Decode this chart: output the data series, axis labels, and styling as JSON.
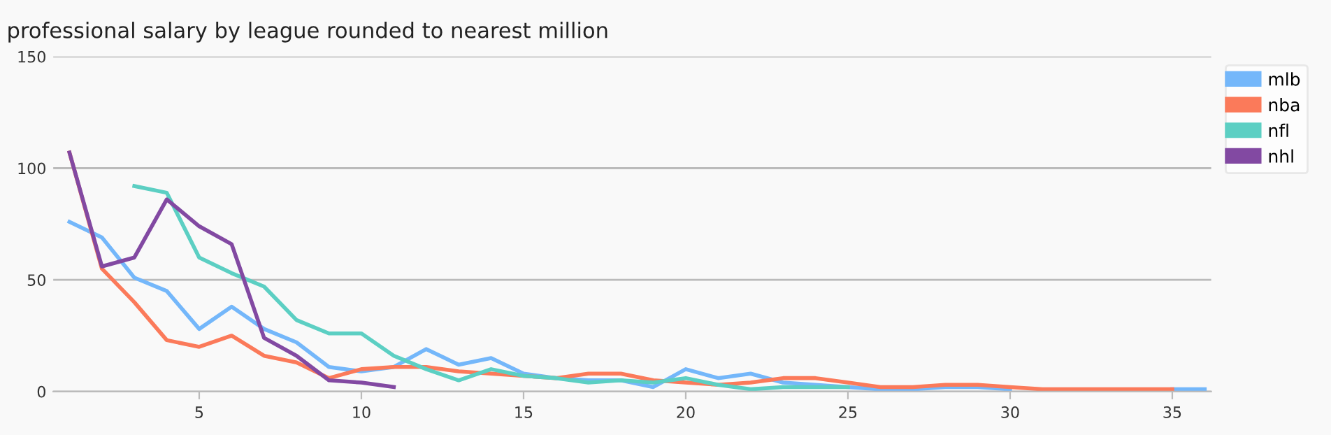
{
  "chart_data": {
    "type": "line",
    "title": "professional salary by league rounded to nearest million",
    "xlim": [
      0.5,
      36.2
    ],
    "xticks": [
      5,
      10,
      15,
      20,
      25,
      30,
      35
    ],
    "ylim": [
      0,
      150
    ],
    "yticks": [
      0,
      50,
      100,
      150
    ],
    "grid": "y",
    "legend": "top right",
    "marker": "none",
    "line_style": "solid",
    "series": [
      {
        "name": "mlb",
        "color": "#74b7fa",
        "x": [
          1,
          2,
          3,
          4,
          5,
          6,
          7,
          8,
          9,
          10,
          11,
          12,
          13,
          14,
          15,
          16,
          17,
          18,
          19,
          20,
          21,
          22,
          23,
          24,
          25,
          26,
          27,
          28,
          29,
          30,
          31,
          32,
          33,
          34,
          35,
          36
        ],
        "values": [
          76,
          69,
          51,
          45,
          28,
          38,
          28,
          22,
          11,
          9,
          11,
          19,
          12,
          15,
          8,
          6,
          5,
          5,
          2,
          10,
          6,
          8,
          4,
          3,
          2,
          1,
          1,
          2,
          2,
          1,
          null,
          null,
          null,
          null,
          1,
          1
        ]
      },
      {
        "name": "nba",
        "color": "#fb7a5a",
        "x": [
          1,
          2,
          3,
          4,
          5,
          6,
          7,
          8,
          9,
          10,
          11,
          12,
          13,
          14,
          15,
          16,
          17,
          18,
          19,
          20,
          21,
          22,
          23,
          24,
          25,
          26,
          27,
          28,
          29,
          30,
          31,
          32,
          33,
          34,
          35
        ],
        "values": [
          107,
          55,
          40,
          23,
          20,
          25,
          16,
          13,
          6,
          10,
          11,
          11,
          9,
          8,
          7,
          6,
          8,
          8,
          5,
          4,
          3,
          4,
          6,
          6,
          4,
          2,
          2,
          3,
          3,
          2,
          1,
          1,
          1,
          1,
          1
        ]
      },
      {
        "name": "nfl",
        "color": "#5ccfc3",
        "x": [
          3,
          4,
          5,
          6,
          7,
          8,
          9,
          10,
          11,
          12,
          13,
          14,
          15,
          16,
          17,
          18,
          19,
          20,
          21,
          22,
          23,
          24,
          25
        ],
        "values": [
          92,
          89,
          60,
          53,
          47,
          32,
          26,
          26,
          16,
          10,
          5,
          10,
          7,
          6,
          4,
          5,
          4,
          6,
          3,
          1,
          2,
          2,
          2
        ]
      },
      {
        "name": "nhl",
        "color": "#8249a2",
        "x": [
          1,
          2,
          3,
          4,
          5,
          6,
          7,
          8,
          9,
          10,
          11
        ],
        "values": [
          107,
          56,
          60,
          86,
          74,
          66,
          24,
          16,
          5,
          4,
          2
        ]
      }
    ]
  }
}
